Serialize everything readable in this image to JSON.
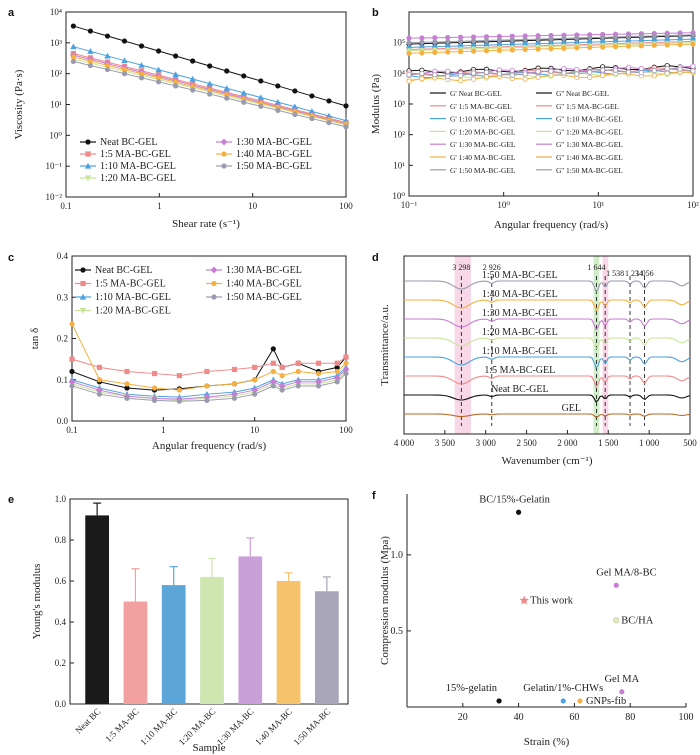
{
  "panel_labels": [
    "a",
    "b",
    "c",
    "d",
    "e",
    "f"
  ],
  "chart_data": [
    {
      "id": "a",
      "type": "line",
      "xlabel": "Shear rate (s⁻¹)",
      "ylabel": "Viscosity (Pa·s)",
      "xscale": "log",
      "yscale": "log",
      "xlim": [
        0.1,
        100
      ],
      "ylim": [
        0.01,
        10000
      ],
      "xticks": [
        {
          "v": 0.1,
          "t": "0.1"
        },
        {
          "v": 1,
          "t": "1"
        },
        {
          "v": 10,
          "t": "10"
        },
        {
          "v": 100,
          "t": "100"
        }
      ],
      "yticks": [
        {
          "v": 0.01,
          "t": "10⁻²"
        },
        {
          "v": 0.1,
          "t": "10⁻¹"
        },
        {
          "v": 1,
          "t": "10⁰"
        },
        {
          "v": 10,
          "t": "10¹"
        },
        {
          "v": 100,
          "t": "10²"
        },
        {
          "v": 1000,
          "t": "10³"
        },
        {
          "v": 10000,
          "t": "10⁴"
        }
      ],
      "legend_columns": [
        [
          "Neat BC-GEL",
          "1:5 MA-BC-GEL",
          "1:10 MA-BC-GEL",
          "1:20 MA-BC-GEL"
        ],
        [
          "1:30 MA-BC-GEL",
          "1:40 MA-BC-GEL",
          "1:50 MA-BC-GEL"
        ]
      ],
      "series": [
        {
          "name": "Neat BC-GEL",
          "color": "#111111",
          "marker": "circle",
          "x": [
            0.12,
            100
          ],
          "y": [
            3500,
            9
          ]
        },
        {
          "name": "1:5 MA-BC-GEL",
          "color": "#f08a8a",
          "marker": "square",
          "x": [
            0.12,
            100
          ],
          "y": [
            450,
            2.6
          ]
        },
        {
          "name": "1:10 MA-BC-GEL",
          "color": "#4aa3df",
          "marker": "triangle",
          "x": [
            0.12,
            100
          ],
          "y": [
            750,
            3.0
          ]
        },
        {
          "name": "1:20 MA-BC-GEL",
          "color": "#c8e49a",
          "marker": "tri-down",
          "x": [
            0.12,
            100
          ],
          "y": [
            300,
            2.2
          ]
        },
        {
          "name": "1:30 MA-BC-GEL",
          "color": "#c77dd3",
          "marker": "diamond",
          "x": [
            0.12,
            100
          ],
          "y": [
            400,
            2.4
          ]
        },
        {
          "name": "1:40 MA-BC-GEL",
          "color": "#f5b041",
          "marker": "pentagon",
          "x": [
            0.12,
            100
          ],
          "y": [
            350,
            2.3
          ]
        },
        {
          "name": "1:50 MA-BC-GEL",
          "color": "#9b9bb0",
          "marker": "hexagon",
          "x": [
            0.12,
            100
          ],
          "y": [
            250,
            1.9
          ]
        }
      ]
    },
    {
      "id": "b",
      "type": "line",
      "xlabel": "Angular frequency (rad/s)",
      "ylabel": "Modulus (Pa)",
      "xscale": "log",
      "yscale": "log",
      "xlim": [
        0.1,
        100
      ],
      "ylim": [
        1,
        1000000
      ],
      "xticks": [
        {
          "v": 0.1,
          "t": "10⁻¹"
        },
        {
          "v": 1,
          "t": "10⁰"
        },
        {
          "v": 10,
          "t": "10¹"
        },
        {
          "v": 100,
          "t": "10²"
        }
      ],
      "yticks": [
        {
          "v": 1,
          "t": "10⁰"
        },
        {
          "v": 10,
          "t": "10¹"
        },
        {
          "v": 100,
          "t": "10²"
        },
        {
          "v": 1000,
          "t": "10³"
        },
        {
          "v": 10000,
          "t": "10⁴"
        },
        {
          "v": 100000,
          "t": "10⁵"
        }
      ],
      "legend_columns": [
        [
          "G' Neat BC-GEL",
          "G' 1:5 MA-BC-GEL",
          "G' 1:10 MA-BC-GEL",
          "G' 1:20 MA-BC-GEL",
          "G' 1:30 MA-BC-GEL",
          "G' 1:40 MA-BC-GEL",
          "G' 1:50 MA-BC-GEL"
        ],
        [
          "G'' Neat BC-GEL",
          "G'' 1:5 MA-BC-GEL",
          "G'' 1:10 MA-BC-GEL",
          "G'' 1:20 MA-BC-GEL",
          "G'' 1:30 MA-BC-GEL",
          "G'' 1:40 MA-BC-GEL",
          "G'' 1:50 MA-BC-GEL"
        ]
      ],
      "series": [
        {
          "name": "G' Neat BC-GEL",
          "color": "#111111",
          "x": [
            0.1,
            100
          ],
          "y": [
            90000,
            170000
          ]
        },
        {
          "name": "G' 1:5 MA-BC-GEL",
          "color": "#f08a8a",
          "x": [
            0.1,
            100
          ],
          "y": [
            60000,
            110000
          ]
        },
        {
          "name": "G' 1:10 MA-BC-GEL",
          "color": "#4aa3df",
          "x": [
            0.1,
            100
          ],
          "y": [
            70000,
            130000
          ]
        },
        {
          "name": "G' 1:20 MA-BC-GEL",
          "color": "#c8e49a",
          "x": [
            0.1,
            100
          ],
          "y": [
            55000,
            100000
          ]
        },
        {
          "name": "G' 1:30 MA-BC-GEL",
          "color": "#c77dd3",
          "x": [
            0.1,
            100
          ],
          "y": [
            140000,
            210000
          ]
        },
        {
          "name": "G' 1:40 MA-BC-GEL",
          "color": "#f5b041",
          "x": [
            0.1,
            100
          ],
          "y": [
            45000,
            90000
          ]
        },
        {
          "name": "G' 1:50 MA-BC-GEL",
          "color": "#9b9bb0",
          "x": [
            0.1,
            100
          ],
          "y": [
            100000,
            180000
          ]
        },
        {
          "name": "G'' Neat BC-GEL",
          "color": "#111111",
          "x": [
            0.1,
            100
          ],
          "y": [
            11000,
            16000
          ]
        },
        {
          "name": "G'' 1:5 MA-BC-GEL",
          "color": "#f08a8a",
          "x": [
            0.1,
            100
          ],
          "y": [
            9000,
            14000
          ]
        },
        {
          "name": "G'' 1:10 MA-BC-GEL",
          "color": "#4aa3df",
          "x": [
            0.1,
            100
          ],
          "y": [
            8000,
            12000
          ]
        },
        {
          "name": "G'' 1:20 MA-BC-GEL",
          "color": "#c8e49a",
          "x": [
            0.1,
            100
          ],
          "y": [
            7000,
            11000
          ]
        },
        {
          "name": "G'' 1:30 MA-BC-GEL",
          "color": "#c77dd3",
          "x": [
            0.1,
            100
          ],
          "y": [
            10000,
            15000
          ]
        },
        {
          "name": "G'' 1:40 MA-BC-GEL",
          "color": "#f5b041",
          "x": [
            0.1,
            100
          ],
          "y": [
            6000,
            10000
          ]
        },
        {
          "name": "G'' 1:50 MA-BC-GEL",
          "color": "#9b9bb0",
          "x": [
            0.1,
            100
          ],
          "y": [
            8500,
            13000
          ]
        }
      ]
    },
    {
      "id": "c",
      "type": "line",
      "xlabel": "Angular frequency (rad/s)",
      "ylabel": "tan δ",
      "xscale": "log",
      "yscale": "linear",
      "xlim": [
        0.1,
        100
      ],
      "ylim": [
        0,
        0.4
      ],
      "xticks": [
        {
          "v": 0.1,
          "t": "0.1"
        },
        {
          "v": 1,
          "t": "1"
        },
        {
          "v": 10,
          "t": "10"
        },
        {
          "v": 100,
          "t": "100"
        }
      ],
      "yticks": [
        {
          "v": 0,
          "t": "0.0"
        },
        {
          "v": 0.1,
          "t": "0.1"
        },
        {
          "v": 0.2,
          "t": "0.2"
        },
        {
          "v": 0.3,
          "t": "0.3"
        },
        {
          "v": 0.4,
          "t": "0.4"
        }
      ],
      "legend_columns": [
        [
          "Neat BC-GEL",
          "1:5 MA-BC-GEL",
          "1:10 MA-BC-GEL",
          "1:20 MA-BC-GEL"
        ],
        [
          "1:30 MA-BC-GEL",
          "1:40 MA-BC-GEL",
          "1:50 MA-BC-GEL"
        ]
      ],
      "series": [
        {
          "name": "Neat BC-GEL",
          "color": "#111111",
          "marker": "circle",
          "x": [
            0.1,
            0.2,
            0.4,
            0.8,
            1.5,
            3,
            6,
            10,
            16,
            20,
            30,
            50,
            80,
            100
          ],
          "y": [
            0.12,
            0.095,
            0.08,
            0.075,
            0.078,
            0.085,
            0.09,
            0.1,
            0.175,
            0.13,
            0.14,
            0.12,
            0.13,
            0.155
          ]
        },
        {
          "name": "1:5 MA-BC-GEL",
          "color": "#f08a8a",
          "marker": "square",
          "x": [
            0.1,
            0.2,
            0.4,
            0.8,
            1.5,
            3,
            6,
            10,
            16,
            20,
            30,
            50,
            80,
            100
          ],
          "y": [
            0.15,
            0.13,
            0.12,
            0.115,
            0.11,
            0.12,
            0.125,
            0.13,
            0.14,
            0.13,
            0.14,
            0.14,
            0.14,
            0.155
          ]
        },
        {
          "name": "1:10 MA-BC-GEL",
          "color": "#4aa3df",
          "marker": "triangle",
          "x": [
            0.1,
            0.2,
            0.4,
            0.8,
            1.5,
            3,
            6,
            10,
            16,
            20,
            30,
            50,
            80,
            100
          ],
          "y": [
            0.1,
            0.08,
            0.065,
            0.06,
            0.058,
            0.065,
            0.07,
            0.08,
            0.1,
            0.09,
            0.1,
            0.1,
            0.11,
            0.13
          ]
        },
        {
          "name": "1:20 MA-BC-GEL",
          "color": "#c8e49a",
          "marker": "tri-down",
          "x": [
            0.1,
            0.2,
            0.4,
            0.8,
            1.5,
            3,
            6,
            10,
            16,
            20,
            30,
            50,
            80,
            100
          ],
          "y": [
            0.09,
            0.07,
            0.06,
            0.055,
            0.05,
            0.055,
            0.06,
            0.07,
            0.09,
            0.08,
            0.09,
            0.09,
            0.1,
            0.12
          ]
        },
        {
          "name": "1:30 MA-BC-GEL",
          "color": "#c77dd3",
          "marker": "diamond",
          "x": [
            0.1,
            0.2,
            0.4,
            0.8,
            1.5,
            3,
            6,
            10,
            16,
            20,
            30,
            50,
            80,
            100
          ],
          "y": [
            0.095,
            0.075,
            0.06,
            0.055,
            0.053,
            0.058,
            0.065,
            0.075,
            0.095,
            0.085,
            0.095,
            0.095,
            0.105,
            0.125
          ]
        },
        {
          "name": "1:40 MA-BC-GEL",
          "color": "#f5b041",
          "marker": "pentagon",
          "x": [
            0.1,
            0.2,
            0.4,
            0.8,
            1.5,
            3,
            6,
            10,
            16,
            20,
            30,
            50,
            80,
            100
          ],
          "y": [
            0.235,
            0.1,
            0.09,
            0.08,
            0.075,
            0.085,
            0.09,
            0.1,
            0.12,
            0.11,
            0.12,
            0.115,
            0.12,
            0.14
          ]
        },
        {
          "name": "1:50 MA-BC-GEL",
          "color": "#9b9bb0",
          "marker": "hexagon",
          "x": [
            0.1,
            0.2,
            0.4,
            0.8,
            1.5,
            3,
            6,
            10,
            16,
            20,
            30,
            50,
            80,
            100
          ],
          "y": [
            0.085,
            0.065,
            0.055,
            0.05,
            0.048,
            0.05,
            0.055,
            0.065,
            0.085,
            0.075,
            0.085,
            0.085,
            0.095,
            0.115
          ]
        }
      ]
    },
    {
      "id": "d",
      "type": "line",
      "xlabel": "Wavenumber (cm⁻¹)",
      "ylabel": "Transmittance/a.u.",
      "xlim": [
        4000,
        500
      ],
      "xticks": [
        {
          "v": 4000,
          "t": "4 000"
        },
        {
          "v": 3500,
          "t": "3 500"
        },
        {
          "v": 3000,
          "t": "3 000"
        },
        {
          "v": 2500,
          "t": "2 500"
        },
        {
          "v": 2000,
          "t": "2 000"
        },
        {
          "v": 1500,
          "t": "1 500"
        },
        {
          "v": 1000,
          "t": "1 000"
        },
        {
          "v": 500,
          "t": "500"
        }
      ],
      "peaks": [
        "3 298",
        "2 926",
        "1 644",
        "1 538",
        "1 234",
        "1 056"
      ],
      "peak_positions": [
        3298,
        2926,
        1644,
        1538,
        1234,
        1056
      ],
      "series": [
        {
          "name": "1:50 MA-BC-GEL",
          "color": "#9b9bb0"
        },
        {
          "name": "1:40 MA-BC-GEL",
          "color": "#f5b041"
        },
        {
          "name": "1:30 MA-BC-GEL",
          "color": "#c77dd3"
        },
        {
          "name": "1:20 MA-BC-GEL",
          "color": "#c8e49a"
        },
        {
          "name": "1:10 MA-BC-GEL",
          "color": "#4aa3df"
        },
        {
          "name": "1:5 MA-BC-GEL",
          "color": "#f08a8a"
        },
        {
          "name": "Neat BC-GEL",
          "color": "#111111"
        },
        {
          "name": "GEL",
          "color": "#b86a2a"
        }
      ]
    },
    {
      "id": "e",
      "type": "bar",
      "xlabel": "Sample",
      "ylabel": "Young's modulus",
      "ylim": [
        0,
        1.0
      ],
      "yticks": [
        {
          "v": 0,
          "t": "0.0"
        },
        {
          "v": 0.2,
          "t": "0.2"
        },
        {
          "v": 0.4,
          "t": "0.4"
        },
        {
          "v": 0.6,
          "t": "0.6"
        },
        {
          "v": 0.8,
          "t": "0.8"
        },
        {
          "v": 1.0,
          "t": "1.0"
        }
      ],
      "categories": [
        "Neat BC",
        "1:5 MA-BC",
        "1:10 MA-BC",
        "1:20 MA-BC",
        "1:30 MA-BC",
        "1:40 MA-BC",
        "1:50 MA-BC"
      ],
      "values": [
        0.92,
        0.5,
        0.58,
        0.62,
        0.72,
        0.6,
        0.55
      ],
      "errors": [
        0.06,
        0.16,
        0.09,
        0.09,
        0.09,
        0.04,
        0.07
      ],
      "colors": [
        "#1a1a1a",
        "#f2a0a0",
        "#5ba6d6",
        "#cfe6b0",
        "#caa0d8",
        "#f7c36a",
        "#a8a5b8"
      ]
    },
    {
      "id": "f",
      "type": "scatter",
      "xlabel": "Strain (%)",
      "ylabel": "Compression modulus (Mpa)",
      "xlim": [
        0,
        100
      ],
      "ylim": [
        0,
        1.4
      ],
      "xticks": [
        {
          "v": 20,
          "t": "20"
        },
        {
          "v": 40,
          "t": "40"
        },
        {
          "v": 60,
          "t": "60"
        },
        {
          "v": 80,
          "t": "80"
        },
        {
          "v": 100,
          "t": "100"
        }
      ],
      "yticks": [
        {
          "v": 0.5,
          "t": "0.5"
        },
        {
          "v": 1.0,
          "t": "1.0"
        }
      ],
      "points": [
        {
          "label": "BC/15%-Gelatin",
          "x": 40,
          "y": 1.28,
          "color": "#111111",
          "shape": "dot"
        },
        {
          "label": "This work",
          "x": 42,
          "y": 0.7,
          "color": "#f08a8a",
          "shape": "star"
        },
        {
          "label": "Gel MA/8-BC",
          "x": 75,
          "y": 0.8,
          "color": "#c77dd3",
          "shape": "dot"
        },
        {
          "label": "BC/HA",
          "x": 75,
          "y": 0.57,
          "color": "#e8e8c8",
          "shape": "dot"
        },
        {
          "label": "Gel MA",
          "x": 77,
          "y": 0.1,
          "color": "#c77dd3",
          "shape": "dot"
        },
        {
          "label": "15%-gelatin",
          "x": 33,
          "y": 0.04,
          "color": "#111111",
          "shape": "dot"
        },
        {
          "label": "Gelatin/1%-CHWs",
          "x": 56,
          "y": 0.04,
          "color": "#4aa3df",
          "shape": "dot"
        },
        {
          "label": "GNPs-fib",
          "x": 62,
          "y": 0.04,
          "color": "#f5b041",
          "shape": "dot"
        }
      ]
    }
  ]
}
